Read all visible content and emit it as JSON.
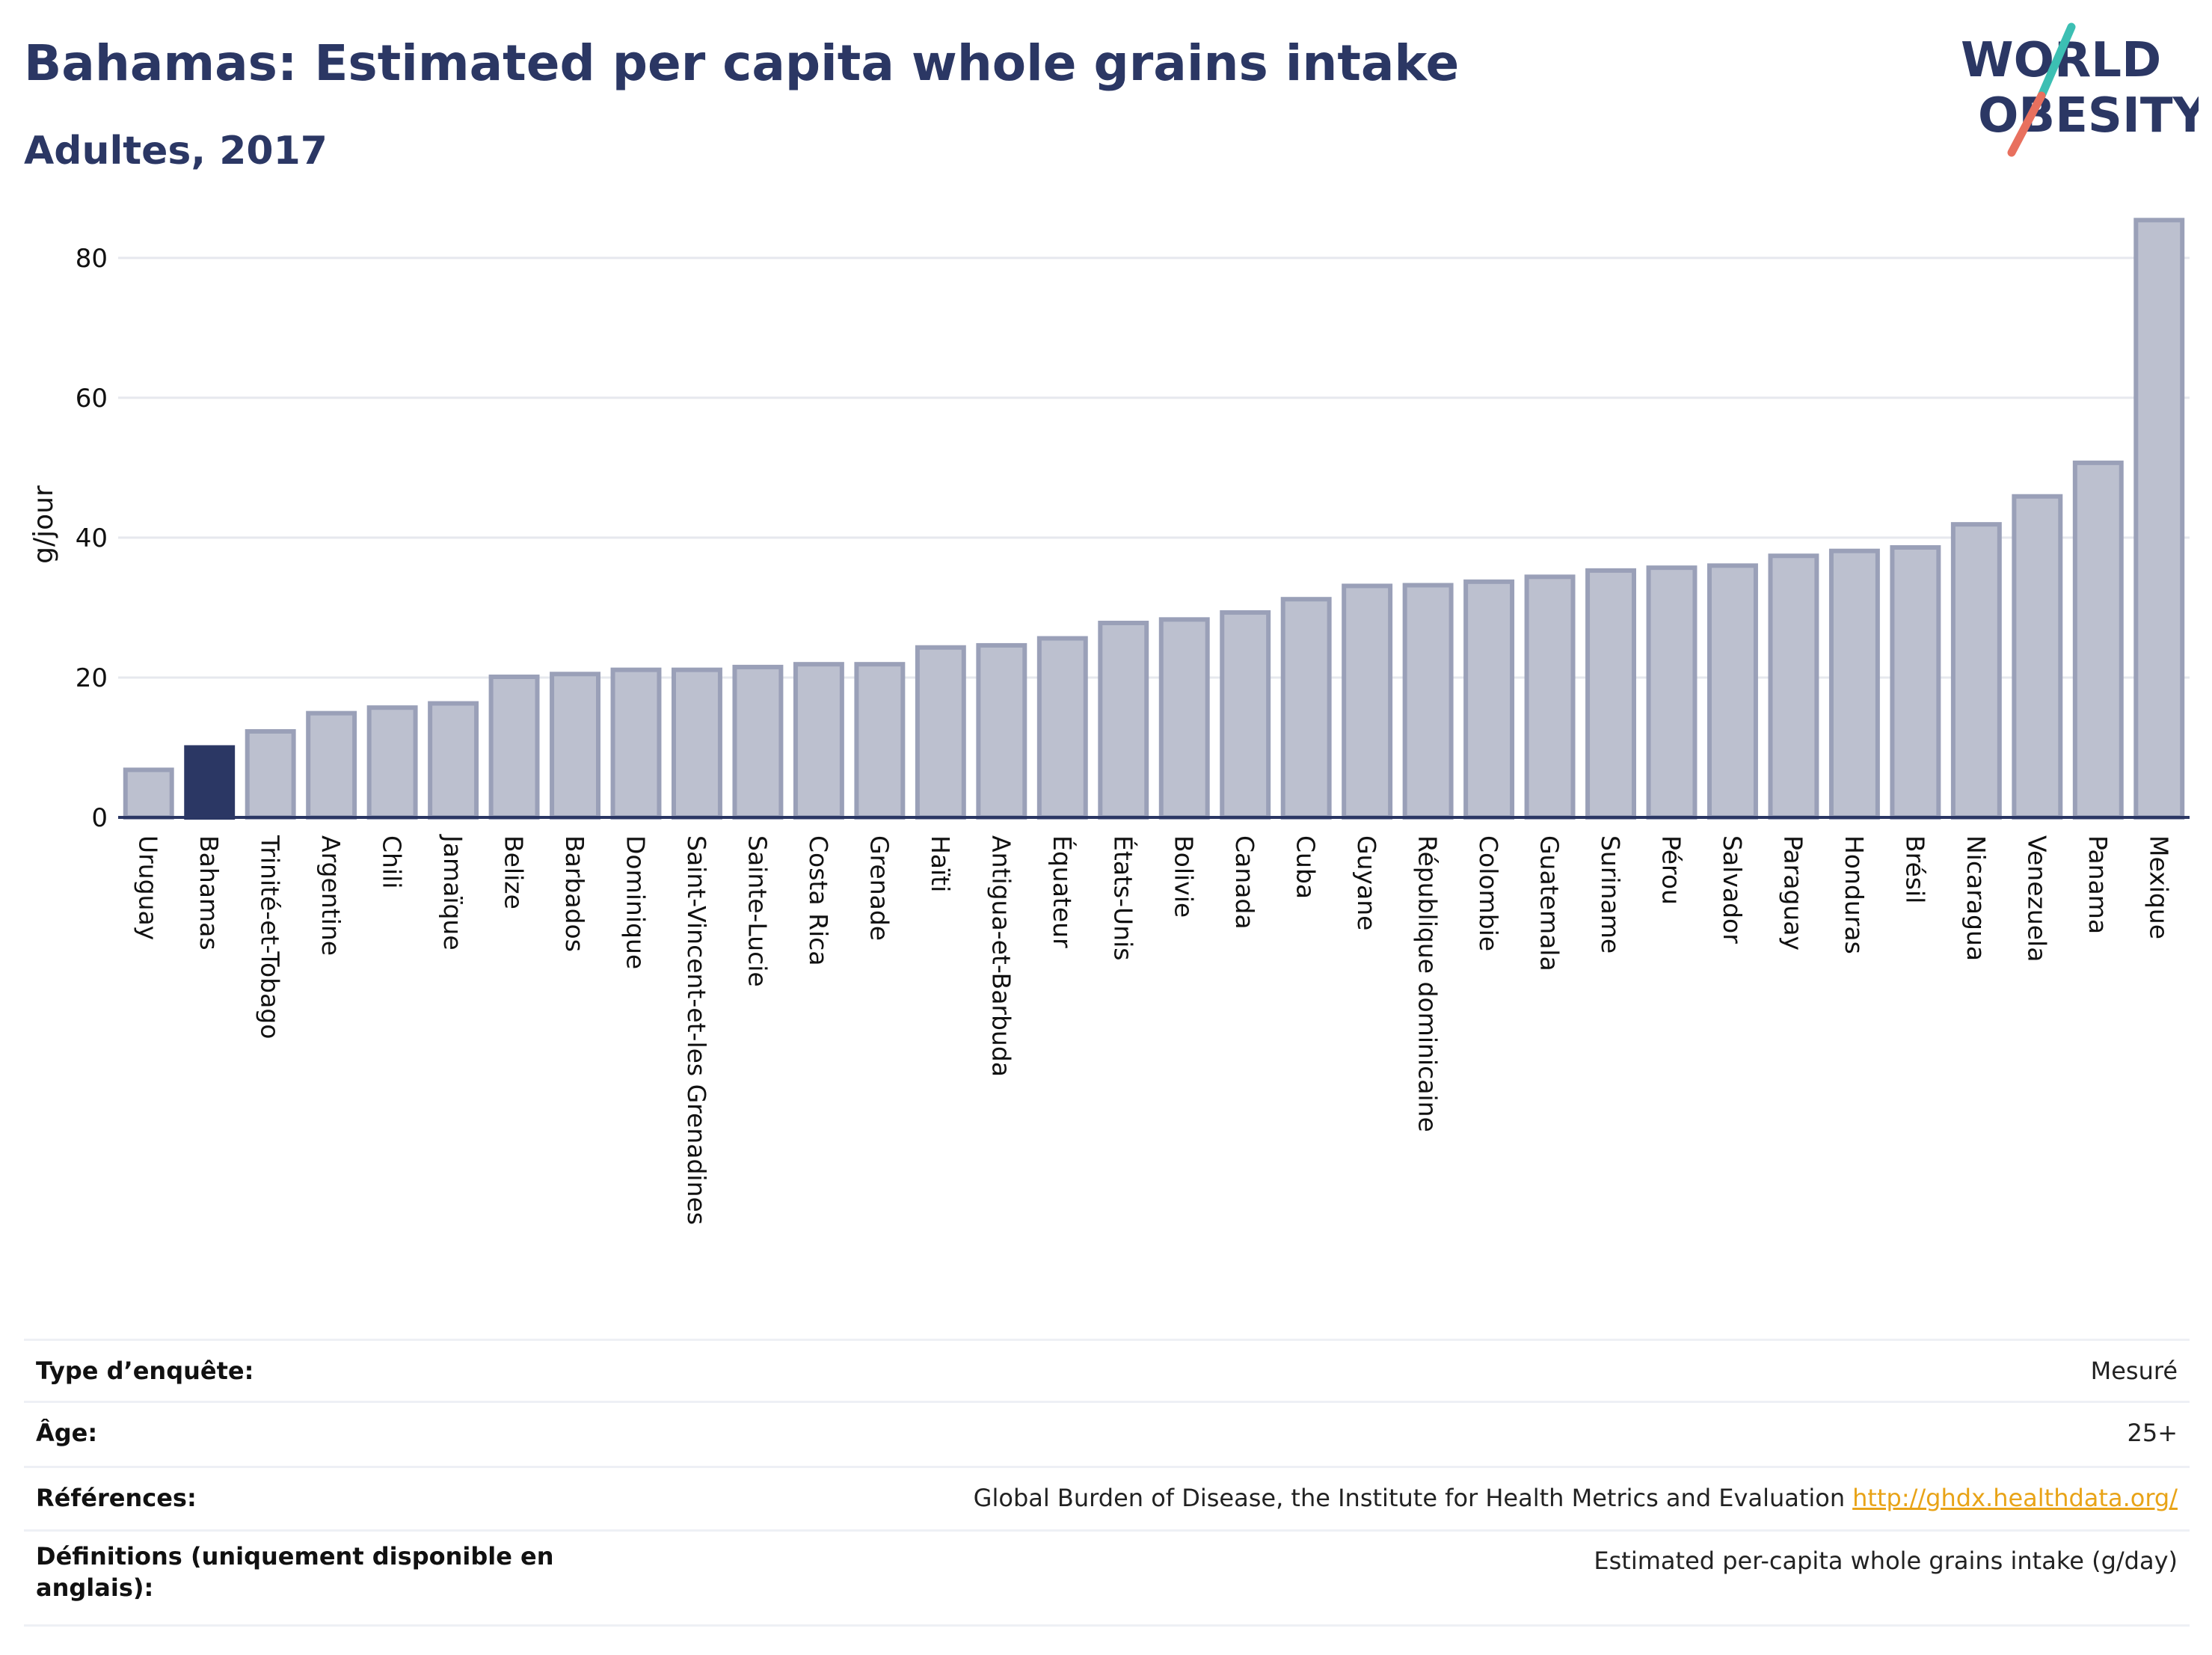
{
  "header": {
    "title": "Bahamas: Estimated per capita whole grains intake",
    "subtitle": "Adultes, 2017"
  },
  "logo": {
    "line1": "WORLD",
    "line2": "OBESITY",
    "colors": {
      "text": "#2b3764",
      "slash_teal": "#3cbfb3",
      "slash_coral": "#e8705e"
    }
  },
  "chart_data": {
    "type": "bar",
    "title": "Bahamas: Estimated per capita whole grains intake",
    "subtitle": "Adultes, 2017",
    "ylabel": "g/jour",
    "xlabel": "",
    "ylim": [
      0,
      88
    ],
    "yticks": [
      0,
      20,
      40,
      60,
      80
    ],
    "grid": true,
    "highlight": "Bahamas",
    "colors": {
      "default": "#bcc0cf",
      "default_border": "#9aa0b8",
      "highlight": "#2b3764"
    },
    "categories": [
      "Uruguay",
      "Bahamas",
      "Trinité-et-Tobago",
      "Argentine",
      "Chili",
      "Jamaïque",
      "Belize",
      "Barbados",
      "Dominique",
      "Saint-Vincent-et-les Grenadines",
      "Sainte-Lucie",
      "Costa Rica",
      "Grenade",
      "Haïti",
      "Antigua-et-Barbuda",
      "Équateur",
      "États-Unis",
      "Bolivie",
      "Canada",
      "Cuba",
      "Guyane",
      "République dominicaine",
      "Colombie",
      "Guatemala",
      "Suriname",
      "Pérou",
      "Salvador",
      "Paraguay",
      "Honduras",
      "Brésil",
      "Nicaragua",
      "Venezuela",
      "Panama",
      "Mexique"
    ],
    "values": [
      6.8,
      10.0,
      12.3,
      14.9,
      15.7,
      16.3,
      20.1,
      20.5,
      21.1,
      21.1,
      21.5,
      21.9,
      21.9,
      24.3,
      24.6,
      25.6,
      27.8,
      28.3,
      29.3,
      31.2,
      33.1,
      33.2,
      33.7,
      34.4,
      35.3,
      35.7,
      36.0,
      37.4,
      38.1,
      38.6,
      41.9,
      45.9,
      50.7,
      85.4
    ]
  },
  "info": {
    "rows": [
      {
        "label": "Type d’enquête:",
        "value": "Mesuré"
      },
      {
        "label": "Âge:",
        "value": "25+"
      },
      {
        "label": "Références:",
        "value": "Global Burden of Disease, the Institute for Health Metrics and Evaluation",
        "link": "http://ghdx.healthdata.org/"
      },
      {
        "label": "Définitions (uniquement disponible en anglais):",
        "value": "Estimated per-capita whole grains intake (g/day)"
      }
    ]
  }
}
